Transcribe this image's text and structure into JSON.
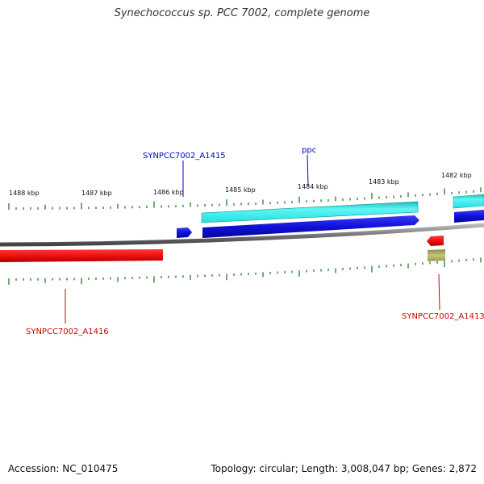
{
  "title": "Synechococcus sp. PCC 7002, complete genome",
  "footer": {
    "accession": "Accession: NC_010475",
    "summary": "Topology: circular; Length: 3,008,047 bp; Genes: 2,872"
  },
  "ticks": [
    "1488 kbp",
    "1487 kbp",
    "1486 kbp",
    "1485 kbp",
    "1484 kbp",
    "1483 kbp",
    "1482 kbp"
  ],
  "genes": [
    {
      "name": "SYNPCC7002_A1415",
      "strand": "forward",
      "color": "#0000cc"
    },
    {
      "name": "ppc",
      "strand": "forward",
      "color": "#0000cc"
    },
    {
      "name": "SYNPCC7002_A1413",
      "strand": "reverse",
      "color": "#cc0000"
    },
    {
      "name": "SYNPCC7002_A1416",
      "strand": "reverse",
      "color": "#cc0000"
    }
  ],
  "colors": {
    "forward_gene": "#1a1ae6",
    "reverse_gene": "#e61a1a",
    "forward_cds": "#2ee6e6",
    "other_feature": "#b3b366",
    "backbone": "#888888",
    "tick": "#2a7a2a"
  }
}
